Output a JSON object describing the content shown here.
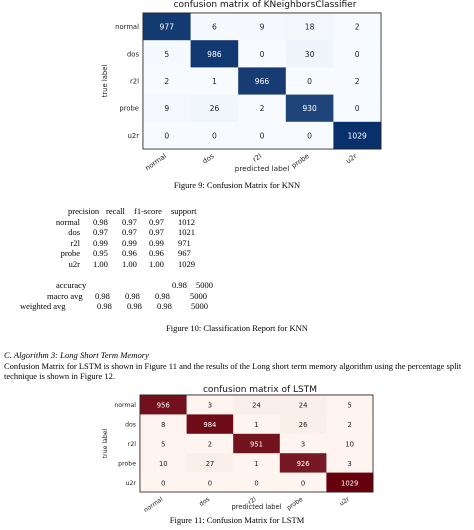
{
  "chart_data": [
    {
      "type": "heatmap",
      "title": "confusion matrix of KNeighborsClassifier",
      "xlabel": "predicted label",
      "ylabel": "true label",
      "colormap": "blues",
      "labels": [
        "normal",
        "dos",
        "r2l",
        "probe",
        "u2r"
      ],
      "matrix": [
        [
          977,
          6,
          9,
          18,
          2
        ],
        [
          5,
          986,
          0,
          30,
          0
        ],
        [
          2,
          1,
          966,
          0,
          2
        ],
        [
          9,
          26,
          2,
          930,
          0
        ],
        [
          0,
          0,
          0,
          0,
          1029
        ]
      ]
    },
    {
      "type": "heatmap",
      "title": "confusion matrix of LSTM",
      "xlabel": "predicted label",
      "ylabel": "true label",
      "colormap": "reds",
      "labels": [
        "normal",
        "dos",
        "r2l",
        "probe",
        "u2r"
      ],
      "matrix": [
        [
          956,
          3,
          24,
          24,
          5
        ],
        [
          8,
          984,
          1,
          26,
          2
        ],
        [
          5,
          2,
          951,
          3,
          10
        ],
        [
          10,
          27,
          1,
          926,
          3
        ],
        [
          0,
          0,
          0,
          0,
          1029
        ]
      ]
    }
  ],
  "captions": {
    "fig9": "Figure 9: Confusion Matrix for KNN",
    "fig10": "Figure 10: Classification Report for KNN",
    "fig11": "Figure 11: Confusion Matrix for LSTM"
  },
  "report": {
    "headers": [
      "precision",
      "recall",
      "f1-score",
      "support"
    ],
    "rows": [
      {
        "label": "normal",
        "precision": "0.98",
        "recall": "0.97",
        "f1": "0.97",
        "support": "1012"
      },
      {
        "label": "dos",
        "precision": "0.97",
        "recall": "0.97",
        "f1": "0.97",
        "support": "1021"
      },
      {
        "label": "r2l",
        "precision": "0.99",
        "recall": "0.99",
        "f1": "0.99",
        "support": "971"
      },
      {
        "label": "probe",
        "precision": "0.95",
        "recall": "0.96",
        "f1": "0.96",
        "support": "967"
      },
      {
        "label": "u2r",
        "precision": "1.00",
        "recall": "1.00",
        "f1": "1.00",
        "support": "1029"
      }
    ],
    "accuracy": {
      "label": "accuracy",
      "f1": "0.98",
      "support": "5000"
    },
    "macro": {
      "label": "macro avg",
      "precision": "0.98",
      "recall": "0.98",
      "f1": "0.98",
      "support": "5000"
    },
    "weighted": {
      "label": "weighted avg",
      "precision": "0.98",
      "recall": "0.98",
      "f1": "0.98",
      "support": "5000"
    }
  },
  "section": {
    "heading": "C.   Algorithm 3: Long Short Term Memory",
    "paragraph": "Confusion Matrix for LSTM is shown in Figure 11 and the results of the Long short term memory algorithm using the percentage split technique is shown in Figure 12."
  }
}
